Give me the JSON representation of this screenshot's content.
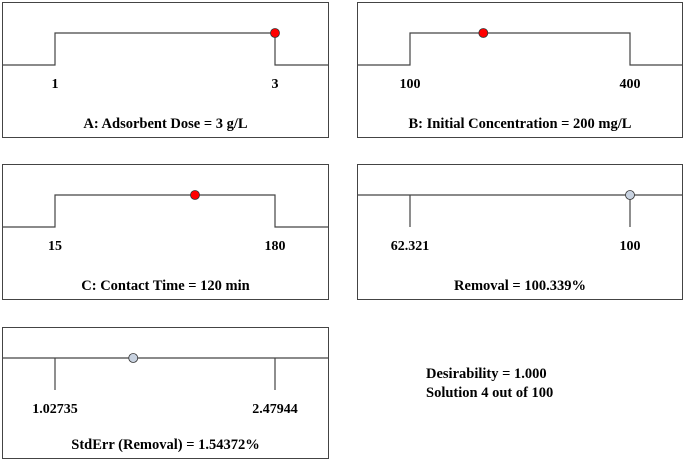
{
  "chart_data": [
    {
      "type": "ramp",
      "caption": "A: Adsorbent Dose = 3 g/L",
      "low_label": "1",
      "high_label": "3",
      "range": [
        1,
        3
      ],
      "value": 3,
      "shape": "step",
      "marker_color": "#ff0000"
    },
    {
      "type": "ramp",
      "caption": "B: Initial Concentration = 200 mg/L",
      "low_label": "100",
      "high_label": "400",
      "range": [
        100,
        400
      ],
      "value": 200,
      "shape": "step",
      "marker_color": "#ff0000"
    },
    {
      "type": "ramp",
      "caption": "C: Contact Time = 120 min",
      "low_label": "15",
      "high_label": "180",
      "range": [
        15,
        180
      ],
      "value": 120,
      "shape": "step",
      "marker_color": "#ff0000"
    },
    {
      "type": "ramp",
      "caption": "Removal = 100.339%",
      "low_label": "62.321",
      "high_label": "100",
      "range": [
        62.321,
        100
      ],
      "value": 100.339,
      "shape": "line",
      "marker_color": "#c8d2e0"
    },
    {
      "type": "ramp",
      "caption": "StdErr (Removal) = 1.54372%",
      "low_label": "1.02735",
      "high_label": "2.47944",
      "range": [
        1.02735,
        2.47944
      ],
      "value": 1.54372,
      "shape": "line",
      "marker_color": "#c8d2e0"
    }
  ],
  "summary": {
    "desirability": "Desirability = 1.000",
    "solution": "Solution 4 out of 100"
  }
}
